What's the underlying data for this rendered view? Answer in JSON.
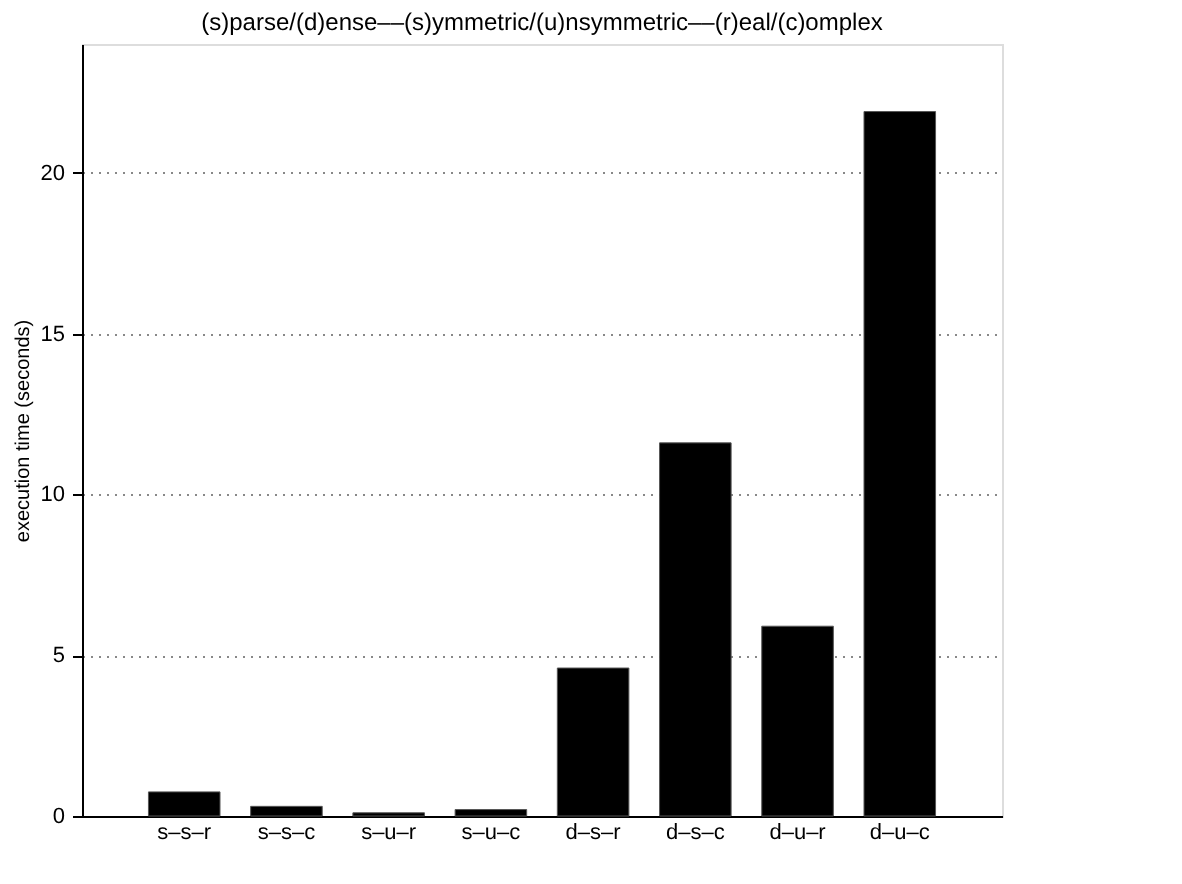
{
  "chart_data": {
    "type": "bar",
    "title": "(s)parse/(d)ense––(s)ymmetric/(u)nsymmetric––(r)eal/(c)omplex",
    "ylabel": "execution time (seconds)",
    "categories": [
      "s–s–r",
      "s–s–c",
      "s–u–r",
      "s–u–c",
      "d–s–r",
      "d–s–c",
      "d–u–r",
      "d–u–c"
    ],
    "values": [
      0.75,
      0.3,
      0.1,
      0.2,
      4.6,
      11.6,
      5.9,
      21.9
    ],
    "color": "#000000",
    "ylim": [
      0,
      24
    ],
    "yticks": [
      0,
      5,
      10,
      15,
      20
    ],
    "grid": "y"
  }
}
